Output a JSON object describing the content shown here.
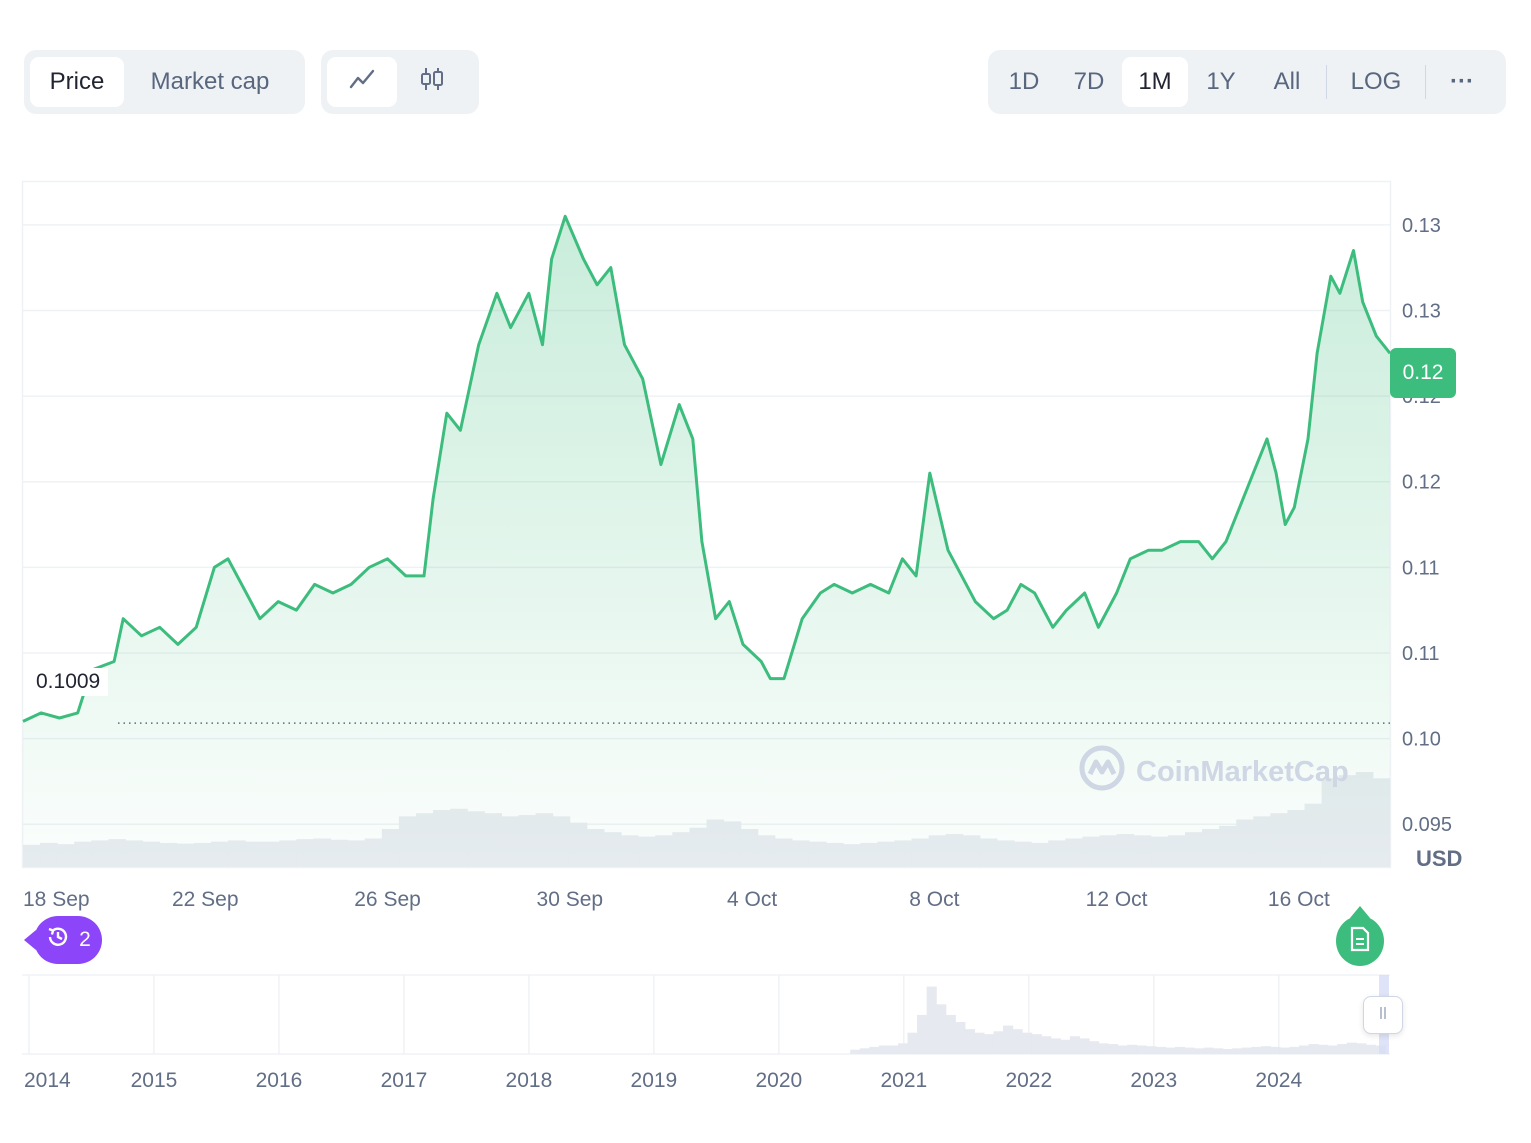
{
  "tabs": {
    "price_label": "Price",
    "marketcap_label": "Market cap"
  },
  "chart_type_icons": {
    "line": "line-chart-icon",
    "candle": "candlestick-icon"
  },
  "ranges": {
    "items": [
      "1D",
      "7D",
      "1M",
      "1Y",
      "All"
    ],
    "active": "1M",
    "log_label": "LOG",
    "more_label": "···"
  },
  "colors": {
    "accent": "#3dbd7d",
    "events": "#8c45f8",
    "grid": "#eff2f5"
  },
  "price_tag": "0.12",
  "usd_label": "USD",
  "baseline_label": "0.1009",
  "watermark": "CoinMarketCap",
  "events_count": "2",
  "chart_data": {
    "type": "area",
    "title": "",
    "ylabel": "USD",
    "ylim": [
      0.0925,
      0.1325
    ],
    "yticks": [
      0.095,
      0.1,
      0.105,
      0.11,
      0.115,
      0.12,
      0.125,
      0.13
    ],
    "ytick_labels": [
      "0.095",
      "0.10",
      "0.11",
      "0.11",
      "0.12",
      "0.12",
      "0.13",
      "0.13"
    ],
    "xlim_days": [
      0,
      30
    ],
    "xtick_labels": [
      "18 Sep",
      "22 Sep",
      "26 Sep",
      "30 Sep",
      "4 Oct",
      "8 Oct",
      "12 Oct",
      "16 Oct"
    ],
    "xtick_days": [
      0,
      4,
      8,
      12,
      16,
      20,
      24,
      28
    ],
    "baseline": 0.1009,
    "current": 0.12,
    "series": [
      {
        "points": [
          [
            0,
            0.101
          ],
          [
            0.4,
            0.1015
          ],
          [
            0.8,
            0.1012
          ],
          [
            1.2,
            0.1015
          ],
          [
            1.5,
            0.104
          ],
          [
            2.0,
            0.1045
          ],
          [
            2.2,
            0.107
          ],
          [
            2.6,
            0.106
          ],
          [
            3.0,
            0.1065
          ],
          [
            3.4,
            0.1055
          ],
          [
            3.8,
            0.1065
          ],
          [
            4.2,
            0.11
          ],
          [
            4.5,
            0.1105
          ],
          [
            4.8,
            0.109
          ],
          [
            5.2,
            0.107
          ],
          [
            5.6,
            0.108
          ],
          [
            6.0,
            0.1075
          ],
          [
            6.4,
            0.109
          ],
          [
            6.8,
            0.1085
          ],
          [
            7.2,
            0.109
          ],
          [
            7.6,
            0.11
          ],
          [
            8.0,
            0.1105
          ],
          [
            8.4,
            0.1095
          ],
          [
            8.8,
            0.1095
          ],
          [
            9.0,
            0.114
          ],
          [
            9.3,
            0.119
          ],
          [
            9.6,
            0.118
          ],
          [
            10.0,
            0.123
          ],
          [
            10.4,
            0.126
          ],
          [
            10.7,
            0.124
          ],
          [
            11.1,
            0.126
          ],
          [
            11.4,
            0.123
          ],
          [
            11.6,
            0.128
          ],
          [
            11.9,
            0.1305
          ],
          [
            12.3,
            0.128
          ],
          [
            12.6,
            0.1265
          ],
          [
            12.9,
            0.1275
          ],
          [
            13.2,
            0.123
          ],
          [
            13.6,
            0.121
          ],
          [
            14.0,
            0.116
          ],
          [
            14.4,
            0.1195
          ],
          [
            14.7,
            0.1175
          ],
          [
            14.9,
            0.1115
          ],
          [
            15.2,
            0.107
          ],
          [
            15.5,
            0.108
          ],
          [
            15.8,
            0.1055
          ],
          [
            16.2,
            0.1045
          ],
          [
            16.4,
            0.1035
          ],
          [
            16.7,
            0.1035
          ],
          [
            17.1,
            0.107
          ],
          [
            17.5,
            0.1085
          ],
          [
            17.8,
            0.109
          ],
          [
            18.2,
            0.1085
          ],
          [
            18.6,
            0.109
          ],
          [
            19.0,
            0.1085
          ],
          [
            19.3,
            0.1105
          ],
          [
            19.6,
            0.1095
          ],
          [
            19.9,
            0.1155
          ],
          [
            20.3,
            0.111
          ],
          [
            20.6,
            0.1095
          ],
          [
            20.9,
            0.108
          ],
          [
            21.3,
            0.107
          ],
          [
            21.6,
            0.1075
          ],
          [
            21.9,
            0.109
          ],
          [
            22.2,
            0.1085
          ],
          [
            22.6,
            0.1065
          ],
          [
            22.9,
            0.1075
          ],
          [
            23.3,
            0.1085
          ],
          [
            23.6,
            0.1065
          ],
          [
            24.0,
            0.1085
          ],
          [
            24.3,
            0.1105
          ],
          [
            24.7,
            0.111
          ],
          [
            25.0,
            0.111
          ],
          [
            25.4,
            0.1115
          ],
          [
            25.8,
            0.1115
          ],
          [
            26.1,
            0.1105
          ],
          [
            26.4,
            0.1115
          ],
          [
            26.7,
            0.1135
          ],
          [
            27.0,
            0.1155
          ],
          [
            27.3,
            0.1175
          ],
          [
            27.5,
            0.1155
          ],
          [
            27.7,
            0.1125
          ],
          [
            27.9,
            0.1135
          ],
          [
            28.2,
            0.1175
          ],
          [
            28.4,
            0.1225
          ],
          [
            28.7,
            0.127
          ],
          [
            28.9,
            0.126
          ],
          [
            29.2,
            0.1285
          ],
          [
            29.4,
            0.1255
          ],
          [
            29.7,
            0.1235
          ],
          [
            30.0,
            0.1225
          ]
        ]
      }
    ],
    "volume_series": [
      0.35,
      0.38,
      0.36,
      0.4,
      0.42,
      0.44,
      0.42,
      0.4,
      0.38,
      0.37,
      0.38,
      0.4,
      0.42,
      0.4,
      0.4,
      0.42,
      0.44,
      0.45,
      0.43,
      0.42,
      0.45,
      0.6,
      0.8,
      0.85,
      0.9,
      0.92,
      0.88,
      0.85,
      0.8,
      0.82,
      0.85,
      0.8,
      0.7,
      0.6,
      0.55,
      0.5,
      0.48,
      0.5,
      0.55,
      0.62,
      0.75,
      0.72,
      0.6,
      0.5,
      0.45,
      0.42,
      0.4,
      0.38,
      0.36,
      0.38,
      0.4,
      0.42,
      0.45,
      0.5,
      0.52,
      0.5,
      0.45,
      0.42,
      0.4,
      0.38,
      0.42,
      0.45,
      0.48,
      0.5,
      0.52,
      0.5,
      0.48,
      0.5,
      0.55,
      0.6,
      0.65,
      0.75,
      0.8,
      0.85,
      0.9,
      1.0,
      1.4,
      1.45,
      1.5,
      1.4
    ],
    "navigator": {
      "year_labels": [
        "2014",
        "2015",
        "2016",
        "2017",
        "2018",
        "2019",
        "2020",
        "2021",
        "2022",
        "2023",
        "2024"
      ],
      "values": [
        0,
        0,
        0,
        0,
        0,
        0,
        0,
        0,
        0,
        0,
        0,
        0,
        0,
        0,
        0,
        0,
        0,
        0,
        0,
        0,
        0,
        0,
        0,
        0,
        0,
        0,
        0,
        0,
        0,
        0,
        0,
        0,
        0,
        0,
        0,
        0,
        0,
        0,
        0,
        0,
        0,
        0,
        0,
        0,
        0,
        0,
        0,
        0,
        0,
        0,
        0,
        0,
        0,
        0,
        0,
        0,
        0,
        0,
        0,
        0,
        0,
        0,
        0,
        0,
        0,
        0,
        0,
        0,
        0,
        0,
        0,
        0,
        0,
        0,
        0,
        0,
        0,
        0,
        0,
        0,
        0,
        0,
        0,
        0,
        0,
        0,
        0.06,
        0.08,
        0.1,
        0.12,
        0.12,
        0.15,
        0.3,
        0.55,
        0.95,
        0.7,
        0.55,
        0.45,
        0.35,
        0.3,
        0.28,
        0.32,
        0.4,
        0.35,
        0.3,
        0.28,
        0.25,
        0.22,
        0.2,
        0.25,
        0.22,
        0.18,
        0.15,
        0.14,
        0.12,
        0.13,
        0.12,
        0.11,
        0.1,
        0.09,
        0.1,
        0.09,
        0.08,
        0.09,
        0.08,
        0.07,
        0.08,
        0.09,
        0.1,
        0.11,
        0.1,
        0.09,
        0.1,
        0.12,
        0.14,
        0.13,
        0.12,
        0.14,
        0.16,
        0.15,
        0.13,
        0.12
      ]
    }
  }
}
